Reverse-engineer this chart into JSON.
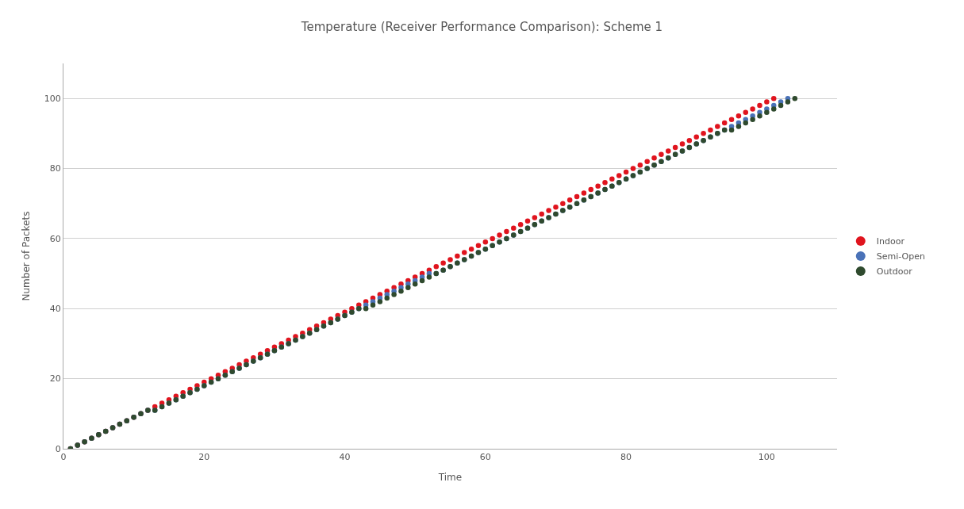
{
  "chart_data": {
    "type": "scatter",
    "title": "Temperature (Receiver Performance Comparison): Scheme 1",
    "xlabel": "Time",
    "ylabel": "Number of Packets",
    "xlim": [
      0,
      110
    ],
    "xticks": [
      0,
      20,
      40,
      60,
      80,
      100
    ],
    "ylim": [
      0,
      110
    ],
    "yticks": [
      0,
      20,
      40,
      60,
      80,
      100
    ],
    "grid": "y",
    "legend": "right",
    "marker": "circle",
    "series": [
      {
        "name": "Indoor",
        "color": "#e0141e",
        "x": [
          1,
          2,
          3,
          4,
          5,
          6,
          7,
          8,
          9,
          10,
          11,
          12,
          13,
          14,
          15,
          16,
          17,
          18,
          19,
          20,
          21,
          22,
          23,
          24,
          25,
          26,
          27,
          28,
          29,
          30,
          31,
          32,
          33,
          34,
          35,
          36,
          37,
          38,
          39,
          40,
          41,
          42,
          43,
          44,
          45,
          46,
          47,
          48,
          49,
          50,
          51,
          52,
          53,
          54,
          55,
          56,
          57,
          58,
          59,
          60,
          61,
          62,
          63,
          64,
          65,
          66,
          67,
          68,
          69,
          70,
          71,
          72,
          73,
          74,
          75,
          76,
          77,
          78,
          79,
          80,
          81,
          82,
          83,
          84,
          85,
          86,
          87,
          88,
          89,
          90,
          91,
          92,
          93,
          94,
          95,
          96,
          97,
          98,
          99,
          100,
          101
        ],
        "values": [
          0,
          1,
          2,
          3,
          4,
          5,
          6,
          7,
          8,
          9,
          10,
          11,
          12,
          13,
          14,
          15,
          16,
          17,
          18,
          19,
          20,
          21,
          22,
          23,
          24,
          25,
          26,
          27,
          28,
          29,
          30,
          31,
          32,
          33,
          34,
          35,
          36,
          37,
          38,
          39,
          40,
          41,
          42,
          43,
          44,
          45,
          46,
          47,
          48,
          49,
          50,
          51,
          52,
          53,
          54,
          55,
          56,
          57,
          58,
          59,
          60,
          61,
          62,
          63,
          64,
          65,
          66,
          67,
          68,
          69,
          70,
          71,
          72,
          73,
          74,
          75,
          76,
          77,
          78,
          79,
          80,
          81,
          82,
          83,
          84,
          85,
          86,
          87,
          88,
          89,
          90,
          91,
          92,
          93,
          94,
          95,
          96,
          97,
          98,
          99,
          100
        ]
      },
      {
        "name": "Semi-Open",
        "color": "#4a72b8",
        "x": [
          1,
          2,
          3,
          4,
          5,
          6,
          7,
          8,
          9,
          10,
          11,
          12,
          13,
          14,
          15,
          16,
          17,
          18,
          19,
          20,
          21,
          22,
          23,
          24,
          25,
          26,
          27,
          28,
          29,
          30,
          31,
          32,
          33,
          34,
          35,
          36,
          37,
          38,
          39,
          40,
          41,
          42,
          43,
          44,
          45,
          46,
          47,
          48,
          49,
          50,
          51,
          52,
          53,
          54,
          55,
          56,
          57,
          58,
          59,
          60,
          61,
          62,
          63,
          64,
          65,
          66,
          67,
          68,
          69,
          70,
          71,
          72,
          73,
          74,
          75,
          76,
          77,
          78,
          79,
          80,
          81,
          82,
          83,
          84,
          85,
          86,
          87,
          88,
          89,
          90,
          91,
          92,
          93,
          94,
          95,
          96,
          97,
          98,
          99,
          100,
          101,
          102,
          103
        ],
        "values": [
          0,
          1,
          2,
          3,
          4,
          5,
          6,
          7,
          8,
          9,
          10,
          11,
          11,
          12,
          13,
          14,
          15,
          16,
          17,
          18,
          19,
          20,
          21,
          22,
          23,
          24,
          25,
          26,
          27,
          28,
          29,
          30,
          31,
          32,
          33,
          34,
          35,
          36,
          37,
          38,
          39,
          40,
          41,
          42,
          43,
          44,
          45,
          46,
          47,
          48,
          49,
          50,
          50,
          51,
          52,
          53,
          54,
          55,
          56,
          57,
          58,
          59,
          60,
          61,
          62,
          63,
          64,
          65,
          66,
          67,
          68,
          69,
          70,
          71,
          72,
          73,
          74,
          75,
          76,
          77,
          78,
          79,
          80,
          81,
          82,
          83,
          84,
          85,
          86,
          87,
          88,
          89,
          90,
          91,
          92,
          93,
          94,
          95,
          96,
          97,
          98,
          99,
          100
        ]
      },
      {
        "name": "Outdoor",
        "color": "#2f4a2e",
        "x": [
          1,
          2,
          3,
          4,
          5,
          6,
          7,
          8,
          9,
          10,
          11,
          12,
          13,
          14,
          15,
          16,
          17,
          18,
          19,
          20,
          21,
          22,
          23,
          24,
          25,
          26,
          27,
          28,
          29,
          30,
          31,
          32,
          33,
          34,
          35,
          36,
          37,
          38,
          39,
          40,
          41,
          42,
          43,
          44,
          45,
          46,
          47,
          48,
          49,
          50,
          51,
          52,
          53,
          54,
          55,
          56,
          57,
          58,
          59,
          60,
          61,
          62,
          63,
          64,
          65,
          66,
          67,
          68,
          69,
          70,
          71,
          72,
          73,
          74,
          75,
          76,
          77,
          78,
          79,
          80,
          81,
          82,
          83,
          84,
          85,
          86,
          87,
          88,
          89,
          90,
          91,
          92,
          93,
          94,
          95,
          96,
          97,
          98,
          99,
          100,
          101,
          102,
          103,
          104
        ],
        "values": [
          0,
          1,
          2,
          3,
          4,
          5,
          6,
          7,
          8,
          9,
          10,
          11,
          11,
          12,
          13,
          14,
          15,
          16,
          17,
          18,
          19,
          20,
          21,
          22,
          23,
          24,
          25,
          26,
          27,
          28,
          29,
          30,
          31,
          32,
          33,
          34,
          35,
          36,
          37,
          38,
          39,
          40,
          40,
          41,
          42,
          43,
          44,
          45,
          46,
          47,
          48,
          49,
          50,
          51,
          52,
          53,
          54,
          55,
          56,
          57,
          58,
          59,
          60,
          61,
          62,
          63,
          64,
          65,
          66,
          67,
          68,
          69,
          70,
          71,
          72,
          73,
          74,
          75,
          76,
          77,
          78,
          79,
          80,
          81,
          82,
          83,
          84,
          85,
          86,
          87,
          88,
          89,
          90,
          91,
          91,
          92,
          93,
          94,
          95,
          96,
          97,
          98,
          99,
          100
        ]
      }
    ]
  }
}
